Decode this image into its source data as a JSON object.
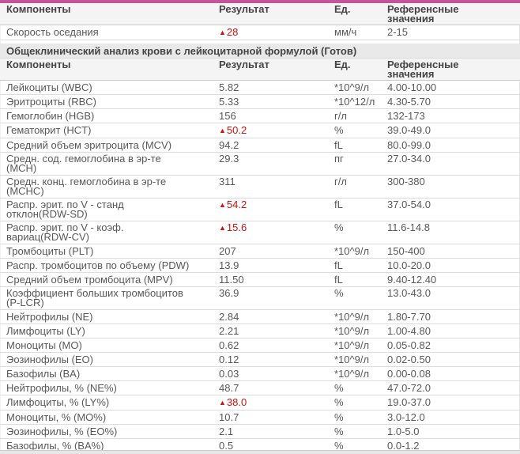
{
  "colors": {
    "accent": "#c4559b",
    "high_value": "#cc1111",
    "header_bg": "#f4f4f4",
    "section_bg": "#e9e9e9"
  },
  "high_marker": "▲",
  "columns": [
    "Компоненты",
    "Результат",
    "Ед.",
    "Референсные значения"
  ],
  "esr_table": {
    "rows": [
      {
        "component": "Скорость оседания",
        "result": "28",
        "high": true,
        "unit": "мм/ч",
        "reference": "2-15"
      }
    ]
  },
  "section": {
    "title": "Общеклинический анализ крови с лейкоцитарной формулой (Готов)"
  },
  "cbc_table": {
    "rows": [
      {
        "component": "Лейкоциты (WBC)",
        "result": "5.82",
        "high": false,
        "unit": "*10^9/л",
        "reference": "4.00-10.00"
      },
      {
        "component": "Эритроциты (RBC)",
        "result": "5.33",
        "high": false,
        "unit": "*10^12/л",
        "reference": "4.30-5.70"
      },
      {
        "component": "Гемоглобин (HGB)",
        "result": "156",
        "high": false,
        "unit": "г/л",
        "reference": "132-173"
      },
      {
        "component": "Гематокрит (HCT)",
        "result": "50.2",
        "high": true,
        "unit": "%",
        "reference": "39.0-49.0"
      },
      {
        "component": "Средний объем эритроцита (MCV)",
        "result": "94.2",
        "high": false,
        "unit": "fL",
        "reference": "80.0-99.0"
      },
      {
        "component": "Средн. сод. гемоглобина в эр-те\n(MCH)",
        "result": "29.3",
        "high": false,
        "unit": "пг",
        "reference": "27.0-34.0"
      },
      {
        "component": "Средн. конц. гемоглобина в эр-те\n(MCHC)",
        "result": "311",
        "high": false,
        "unit": "г/л",
        "reference": "300-380"
      },
      {
        "component": "Распр. эрит. по V - станд\nотклон(RDW-SD)",
        "result": "54.2",
        "high": true,
        "unit": "fL",
        "reference": "37.0-54.0"
      },
      {
        "component": "Распр. эрит. по V - коэф.\nвариац(RDW-CV)",
        "result": "15.6",
        "high": true,
        "unit": "%",
        "reference": "11.6-14.8"
      },
      {
        "component": "Тромбоциты (PLT)",
        "result": "207",
        "high": false,
        "unit": "*10^9/л",
        "reference": "150-400"
      },
      {
        "component": "Распр. тромбоцитов по объему (PDW)",
        "result": "13.9",
        "high": false,
        "unit": "fL",
        "reference": "10.0-20.0"
      },
      {
        "component": "Средний объем тромбоцита (MPV)",
        "result": "11.50",
        "high": false,
        "unit": "fL",
        "reference": "9.40-12.40"
      },
      {
        "component": "Коэффициент больших тромбоцитов\n(P-LCR)",
        "result": "36.9",
        "high": false,
        "unit": "%",
        "reference": "13.0-43.0"
      },
      {
        "component": "Нейтрофилы (NE)",
        "result": "2.84",
        "high": false,
        "unit": "*10^9/л",
        "reference": "1.80-7.70"
      },
      {
        "component": "Лимфоциты (LY)",
        "result": "2.21",
        "high": false,
        "unit": "*10^9/л",
        "reference": "1.00-4.80"
      },
      {
        "component": "Моноциты (MO)",
        "result": "0.62",
        "high": false,
        "unit": "*10^9/л",
        "reference": "0.05-0.82"
      },
      {
        "component": "Эозинофилы (EO)",
        "result": "0.12",
        "high": false,
        "unit": "*10^9/л",
        "reference": "0.02-0.50"
      },
      {
        "component": "Базофилы (BA)",
        "result": "0.03",
        "high": false,
        "unit": "*10^9/л",
        "reference": "0.00-0.08"
      },
      {
        "component": "Нейтрофилы, % (NE%)",
        "result": "48.7",
        "high": false,
        "unit": "%",
        "reference": "47.0-72.0"
      },
      {
        "component": "Лимфоциты, % (LY%)",
        "result": "38.0",
        "high": true,
        "unit": "%",
        "reference": "19.0-37.0"
      },
      {
        "component": "Моноциты, % (MO%)",
        "result": "10.7",
        "high": false,
        "unit": "%",
        "reference": "3.0-12.0"
      },
      {
        "component": "Эозинофилы, % (EO%)",
        "result": "2.1",
        "high": false,
        "unit": "%",
        "reference": "1.0-5.0"
      },
      {
        "component": "Базофилы, % (BA%)",
        "result": "0.5",
        "high": false,
        "unit": "%",
        "reference": "0.0-1.2"
      }
    ]
  }
}
